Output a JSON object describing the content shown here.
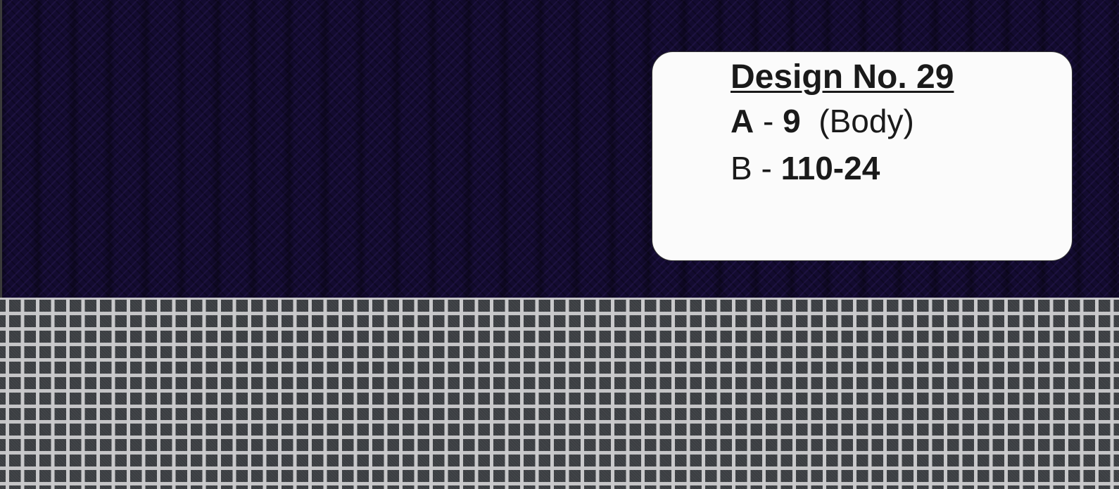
{
  "card": {
    "title": "Design No. 29",
    "line_a": {
      "label": "A",
      "sep": "-",
      "value": "9",
      "note": "(Body)"
    },
    "line_b": {
      "label": "B",
      "sep": "-",
      "value": "110-24"
    }
  },
  "colors": {
    "fabric_a": "#130b30",
    "fabric_b_base": "#3b3e42",
    "fabric_b_thread": "#c9c9cb",
    "card": "#fbfbfb"
  }
}
